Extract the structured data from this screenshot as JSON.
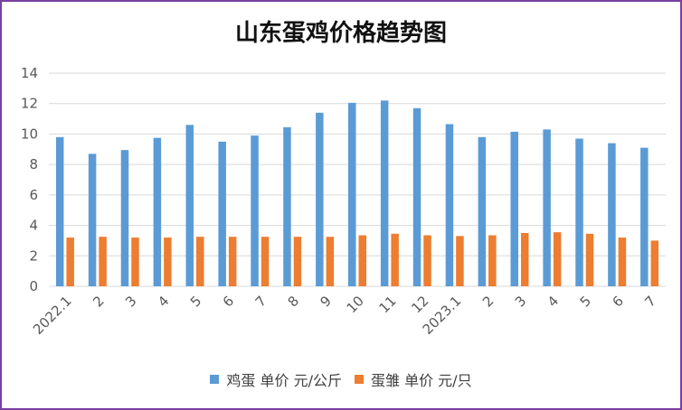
{
  "chart_data": {
    "type": "bar",
    "title": "山东蛋鸡价格趋势图",
    "categories": [
      "2022.1",
      "2",
      "3",
      "4",
      "5",
      "6",
      "7",
      "8",
      "9",
      "10",
      "11",
      "12",
      "2023.1",
      "2",
      "3",
      "4",
      "5",
      "6",
      "7"
    ],
    "yticks": [
      "0",
      "2",
      "4",
      "6",
      "8",
      "10",
      "12",
      "14"
    ],
    "ylim": [
      0,
      14
    ],
    "grid": true,
    "legend_position": "bottom",
    "series": [
      {
        "name": "鸡蛋 单价 元/公斤",
        "color": "#5b9bd5",
        "values": [
          9.8,
          8.7,
          8.95,
          9.75,
          10.6,
          9.5,
          9.9,
          10.45,
          11.4,
          12.05,
          12.2,
          11.7,
          10.65,
          9.8,
          10.15,
          10.3,
          9.7,
          9.4,
          9.1
        ]
      },
      {
        "name": "蛋雏 单价 元/只",
        "color": "#ed7d31",
        "values": [
          3.2,
          3.25,
          3.2,
          3.2,
          3.25,
          3.25,
          3.25,
          3.25,
          3.25,
          3.35,
          3.45,
          3.35,
          3.3,
          3.35,
          3.5,
          3.55,
          3.45,
          3.2,
          3.0
        ]
      }
    ]
  }
}
